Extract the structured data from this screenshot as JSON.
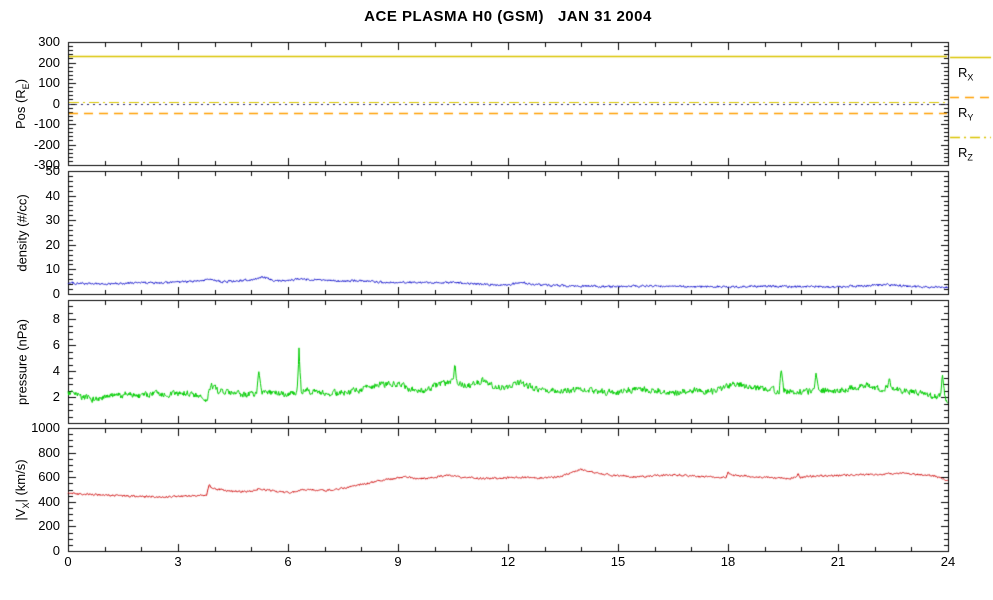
{
  "chart_data": {
    "type": "line",
    "title": "ACE PLASMA H0 (GSM)   JAN 31 2004",
    "x_axis": {
      "lim": [
        0,
        24
      ],
      "ticks": [
        0,
        3,
        6,
        9,
        12,
        15,
        18,
        21,
        24
      ],
      "minor_step": 1
    },
    "panels": [
      {
        "ylabel": "Pos (R_E)",
        "ylim": [
          -300,
          300
        ],
        "yticks": [
          -300,
          -200,
          -100,
          0,
          100,
          200,
          300
        ],
        "yminor_step": 20,
        "ref_lines": [
          {
            "name": "R_X",
            "value": 230,
            "style": "solid",
            "color": "#d9c400",
            "width": 1.4
          },
          {
            "name": "R_Z",
            "value": 8,
            "style": "dashdot",
            "color": "#d9c400",
            "width": 1.2
          },
          {
            "name": "zero",
            "value": 0,
            "style": "dotted",
            "color": "#26266e",
            "width": 1.2
          },
          {
            "name": "R_Y",
            "value": -45,
            "style": "dashed",
            "color": "#ff9f00",
            "width": 1.4
          }
        ]
      },
      {
        "ylabel": "density (#/cc)",
        "ylim": [
          0,
          50
        ],
        "yticks": [
          0,
          10,
          20,
          30,
          40,
          50
        ],
        "yminor_step": 2,
        "series": {
          "name": "density",
          "color": "#1414cc",
          "noise": 0.4,
          "anchors": [
            [
              0,
              4.5
            ],
            [
              0.5,
              4.2
            ],
            [
              1,
              4.0
            ],
            [
              1.5,
              4.3
            ],
            [
              2,
              4.6
            ],
            [
              2.5,
              4.4
            ],
            [
              3,
              4.8
            ],
            [
              3.5,
              5.2
            ],
            [
              3.8,
              6.0
            ],
            [
              4.2,
              5.0
            ],
            [
              4.6,
              5.3
            ],
            [
              5,
              5.8
            ],
            [
              5.3,
              6.8
            ],
            [
              5.6,
              5.6
            ],
            [
              6,
              5.4
            ],
            [
              6.3,
              6.2
            ],
            [
              6.6,
              5.8
            ],
            [
              7,
              5.6
            ],
            [
              7.5,
              5.2
            ],
            [
              8,
              5.4
            ],
            [
              8.5,
              4.9
            ],
            [
              9,
              4.6
            ],
            [
              9.5,
              4.8
            ],
            [
              10,
              4.4
            ],
            [
              10.5,
              4.7
            ],
            [
              11,
              4.2
            ],
            [
              11.5,
              3.9
            ],
            [
              12,
              3.7
            ],
            [
              12.4,
              4.6
            ],
            [
              12.8,
              3.8
            ],
            [
              13.2,
              3.4
            ],
            [
              14,
              3.2
            ],
            [
              15,
              3.0
            ],
            [
              16,
              3.3
            ],
            [
              17,
              3.0
            ],
            [
              18,
              2.9
            ],
            [
              19,
              3.2
            ],
            [
              20,
              3.0
            ],
            [
              21,
              2.9
            ],
            [
              21.7,
              3.4
            ],
            [
              22.3,
              3.8
            ],
            [
              22.8,
              3.2
            ],
            [
              23.4,
              2.9
            ],
            [
              24,
              2.7
            ]
          ]
        }
      },
      {
        "ylabel": "pressure (nPa)",
        "ylim": [
          0,
          9.5
        ],
        "yticks": [
          2,
          4,
          6,
          8
        ],
        "yminor_step": 0.5,
        "series": {
          "name": "pressure",
          "color": "#00cc00",
          "noise": 0.22,
          "anchors": [
            [
              0,
              2.3
            ],
            [
              0.4,
              2.0
            ],
            [
              0.8,
              1.8
            ],
            [
              1.2,
              2.1
            ],
            [
              1.6,
              2.2
            ],
            [
              2,
              2.1
            ],
            [
              2.4,
              2.3
            ],
            [
              2.8,
              2.2
            ],
            [
              3.2,
              2.3
            ],
            [
              3.6,
              2.1
            ],
            [
              3.75,
              1.5
            ],
            [
              3.9,
              2.9
            ],
            [
              4.1,
              2.5
            ],
            [
              4.4,
              2.3
            ],
            [
              4.8,
              2.2
            ],
            [
              5.15,
              2.3
            ],
            [
              5.2,
              3.8
            ],
            [
              5.27,
              2.4
            ],
            [
              5.7,
              2.3
            ],
            [
              6,
              2.2
            ],
            [
              6.25,
              2.4
            ],
            [
              6.3,
              5.7
            ],
            [
              6.36,
              2.5
            ],
            [
              6.8,
              2.4
            ],
            [
              7.2,
              2.3
            ],
            [
              7.6,
              2.4
            ],
            [
              8,
              2.6
            ],
            [
              8.4,
              2.9
            ],
            [
              8.8,
              3.1
            ],
            [
              9.1,
              2.9
            ],
            [
              9.4,
              2.6
            ],
            [
              9.8,
              2.5
            ],
            [
              10.1,
              3.0
            ],
            [
              10.5,
              3.2
            ],
            [
              10.55,
              4.4
            ],
            [
              10.62,
              3.0
            ],
            [
              11,
              2.9
            ],
            [
              11.3,
              3.3
            ],
            [
              11.6,
              2.8
            ],
            [
              12,
              2.8
            ],
            [
              12.3,
              3.1
            ],
            [
              12.7,
              2.7
            ],
            [
              13,
              2.6
            ],
            [
              13.5,
              2.5
            ],
            [
              14,
              2.6
            ],
            [
              14.5,
              2.4
            ],
            [
              15,
              2.4
            ],
            [
              15.5,
              2.6
            ],
            [
              16,
              2.5
            ],
            [
              16.5,
              2.3
            ],
            [
              17,
              2.5
            ],
            [
              17.5,
              2.4
            ],
            [
              17.9,
              2.7
            ],
            [
              18.2,
              3.1
            ],
            [
              18.5,
              2.8
            ],
            [
              19,
              2.6
            ],
            [
              19.4,
              2.5
            ],
            [
              19.45,
              4.3
            ],
            [
              19.52,
              2.5
            ],
            [
              20,
              2.4
            ],
            [
              20.35,
              2.5
            ],
            [
              20.4,
              3.9
            ],
            [
              20.47,
              2.5
            ],
            [
              21,
              2.4
            ],
            [
              21.4,
              2.7
            ],
            [
              21.8,
              2.9
            ],
            [
              22.2,
              2.6
            ],
            [
              22.35,
              2.7
            ],
            [
              22.4,
              3.3
            ],
            [
              22.47,
              2.6
            ],
            [
              23,
              2.4
            ],
            [
              23.4,
              2.2
            ],
            [
              23.7,
              2.0
            ],
            [
              23.8,
              2.1
            ],
            [
              23.85,
              3.6
            ],
            [
              23.92,
              1.9
            ],
            [
              24,
              1.7
            ]
          ]
        }
      },
      {
        "ylabel": "|V_X| (km/s)",
        "ylim": [
          0,
          1000
        ],
        "yticks": [
          0,
          200,
          400,
          600,
          800,
          1000
        ],
        "yminor_step": 50,
        "series": {
          "name": "vx",
          "color": "#d01414",
          "noise": 7,
          "anchors": [
            [
              0,
              470
            ],
            [
              0.4,
              462
            ],
            [
              0.8,
              458
            ],
            [
              1.2,
              452
            ],
            [
              1.6,
              448
            ],
            [
              2,
              444
            ],
            [
              2.4,
              440
            ],
            [
              2.8,
              443
            ],
            [
              3.2,
              446
            ],
            [
              3.6,
              450
            ],
            [
              3.78,
              452
            ],
            [
              3.85,
              535
            ],
            [
              3.95,
              505
            ],
            [
              4.3,
              492
            ],
            [
              4.6,
              485
            ],
            [
              5,
              483
            ],
            [
              5.2,
              505
            ],
            [
              5.5,
              492
            ],
            [
              5.8,
              480
            ],
            [
              6.1,
              478
            ],
            [
              6.4,
              495
            ],
            [
              6.7,
              500
            ],
            [
              7,
              492
            ],
            [
              7.3,
              500
            ],
            [
              7.6,
              515
            ],
            [
              8,
              540
            ],
            [
              8.4,
              565
            ],
            [
              8.8,
              585
            ],
            [
              9.2,
              600
            ],
            [
              9.5,
              592
            ],
            [
              9.8,
              588
            ],
            [
              10.1,
              605
            ],
            [
              10.4,
              618
            ],
            [
              10.7,
              600
            ],
            [
              11,
              595
            ],
            [
              11.4,
              588
            ],
            [
              11.8,
              592
            ],
            [
              12.2,
              600
            ],
            [
              12.6,
              598
            ],
            [
              13,
              592
            ],
            [
              13.4,
              605
            ],
            [
              13.8,
              645
            ],
            [
              14,
              662
            ],
            [
              14.2,
              648
            ],
            [
              14.5,
              628
            ],
            [
              15,
              612
            ],
            [
              15.5,
              602
            ],
            [
              16,
              612
            ],
            [
              16.4,
              622
            ],
            [
              16.8,
              615
            ],
            [
              17.2,
              605
            ],
            [
              17.6,
              600
            ],
            [
              17.95,
              600
            ],
            [
              18,
              640
            ],
            [
              18.1,
              615
            ],
            [
              18.4,
              612
            ],
            [
              18.8,
              602
            ],
            [
              19.2,
              596
            ],
            [
              19.6,
              590
            ],
            [
              19.85,
              595
            ],
            [
              19.9,
              628
            ],
            [
              19.98,
              600
            ],
            [
              20.4,
              610
            ],
            [
              20.8,
              612
            ],
            [
              21.2,
              618
            ],
            [
              21.6,
              622
            ],
            [
              22,
              620
            ],
            [
              22.4,
              628
            ],
            [
              22.8,
              635
            ],
            [
              23.2,
              622
            ],
            [
              23.6,
              612
            ],
            [
              24,
              570
            ]
          ]
        }
      }
    ],
    "legend": [
      {
        "label": "R_X",
        "style": "solid",
        "color": "#d9c400"
      },
      {
        "label": "R_Y",
        "style": "dashed",
        "color": "#ff9f00"
      },
      {
        "label": "R_Z",
        "style": "dashdot",
        "color": "#d9c400"
      }
    ]
  }
}
